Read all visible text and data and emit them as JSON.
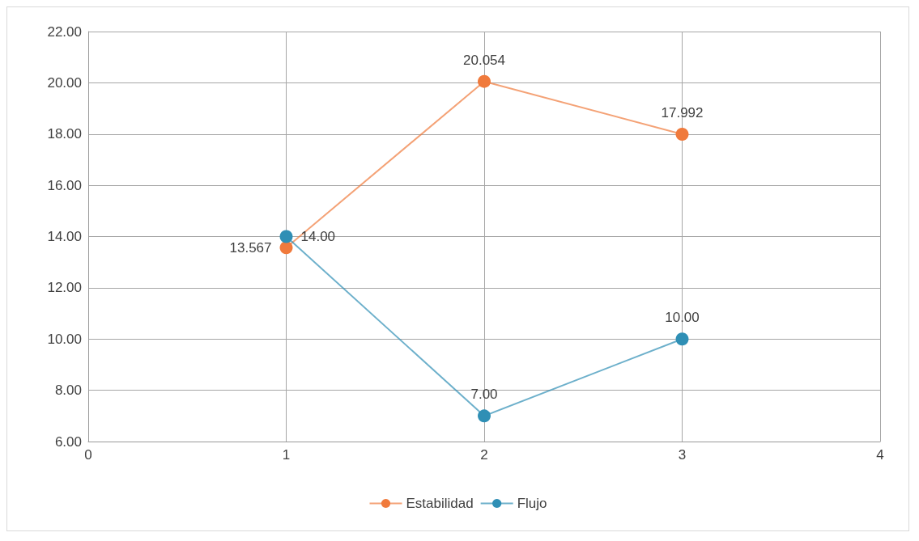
{
  "chart_data": {
    "type": "line",
    "x": [
      1,
      2,
      3
    ],
    "series": [
      {
        "name": "Estabilidad",
        "color": "#f07a3c",
        "values": [
          13.567,
          20.054,
          17.992
        ],
        "value_labels": [
          "13.567",
          "20.054",
          "17.992"
        ]
      },
      {
        "name": "Flujo",
        "color": "#2f8fb5",
        "values": [
          14,
          7,
          10
        ],
        "value_labels": [
          "14.00",
          "7.00",
          "10.00"
        ]
      }
    ],
    "xlim": [
      0,
      4
    ],
    "xticks": [
      0,
      1,
      2,
      3,
      4
    ],
    "ylim": [
      6,
      22
    ],
    "yticks": [
      {
        "value": 6,
        "label": "6.00"
      },
      {
        "value": 8,
        "label": "8.00"
      },
      {
        "value": 10,
        "label": "10.00"
      },
      {
        "value": 12,
        "label": "12.00"
      },
      {
        "value": 14,
        "label": "14.00"
      },
      {
        "value": 16,
        "label": "16.00"
      },
      {
        "value": 18,
        "label": "18.00"
      },
      {
        "value": 20,
        "label": "20.00"
      },
      {
        "value": 22,
        "label": "22.00"
      }
    ],
    "grid": true,
    "legend": "bottom",
    "marker": "circle",
    "line_style": "solid"
  }
}
